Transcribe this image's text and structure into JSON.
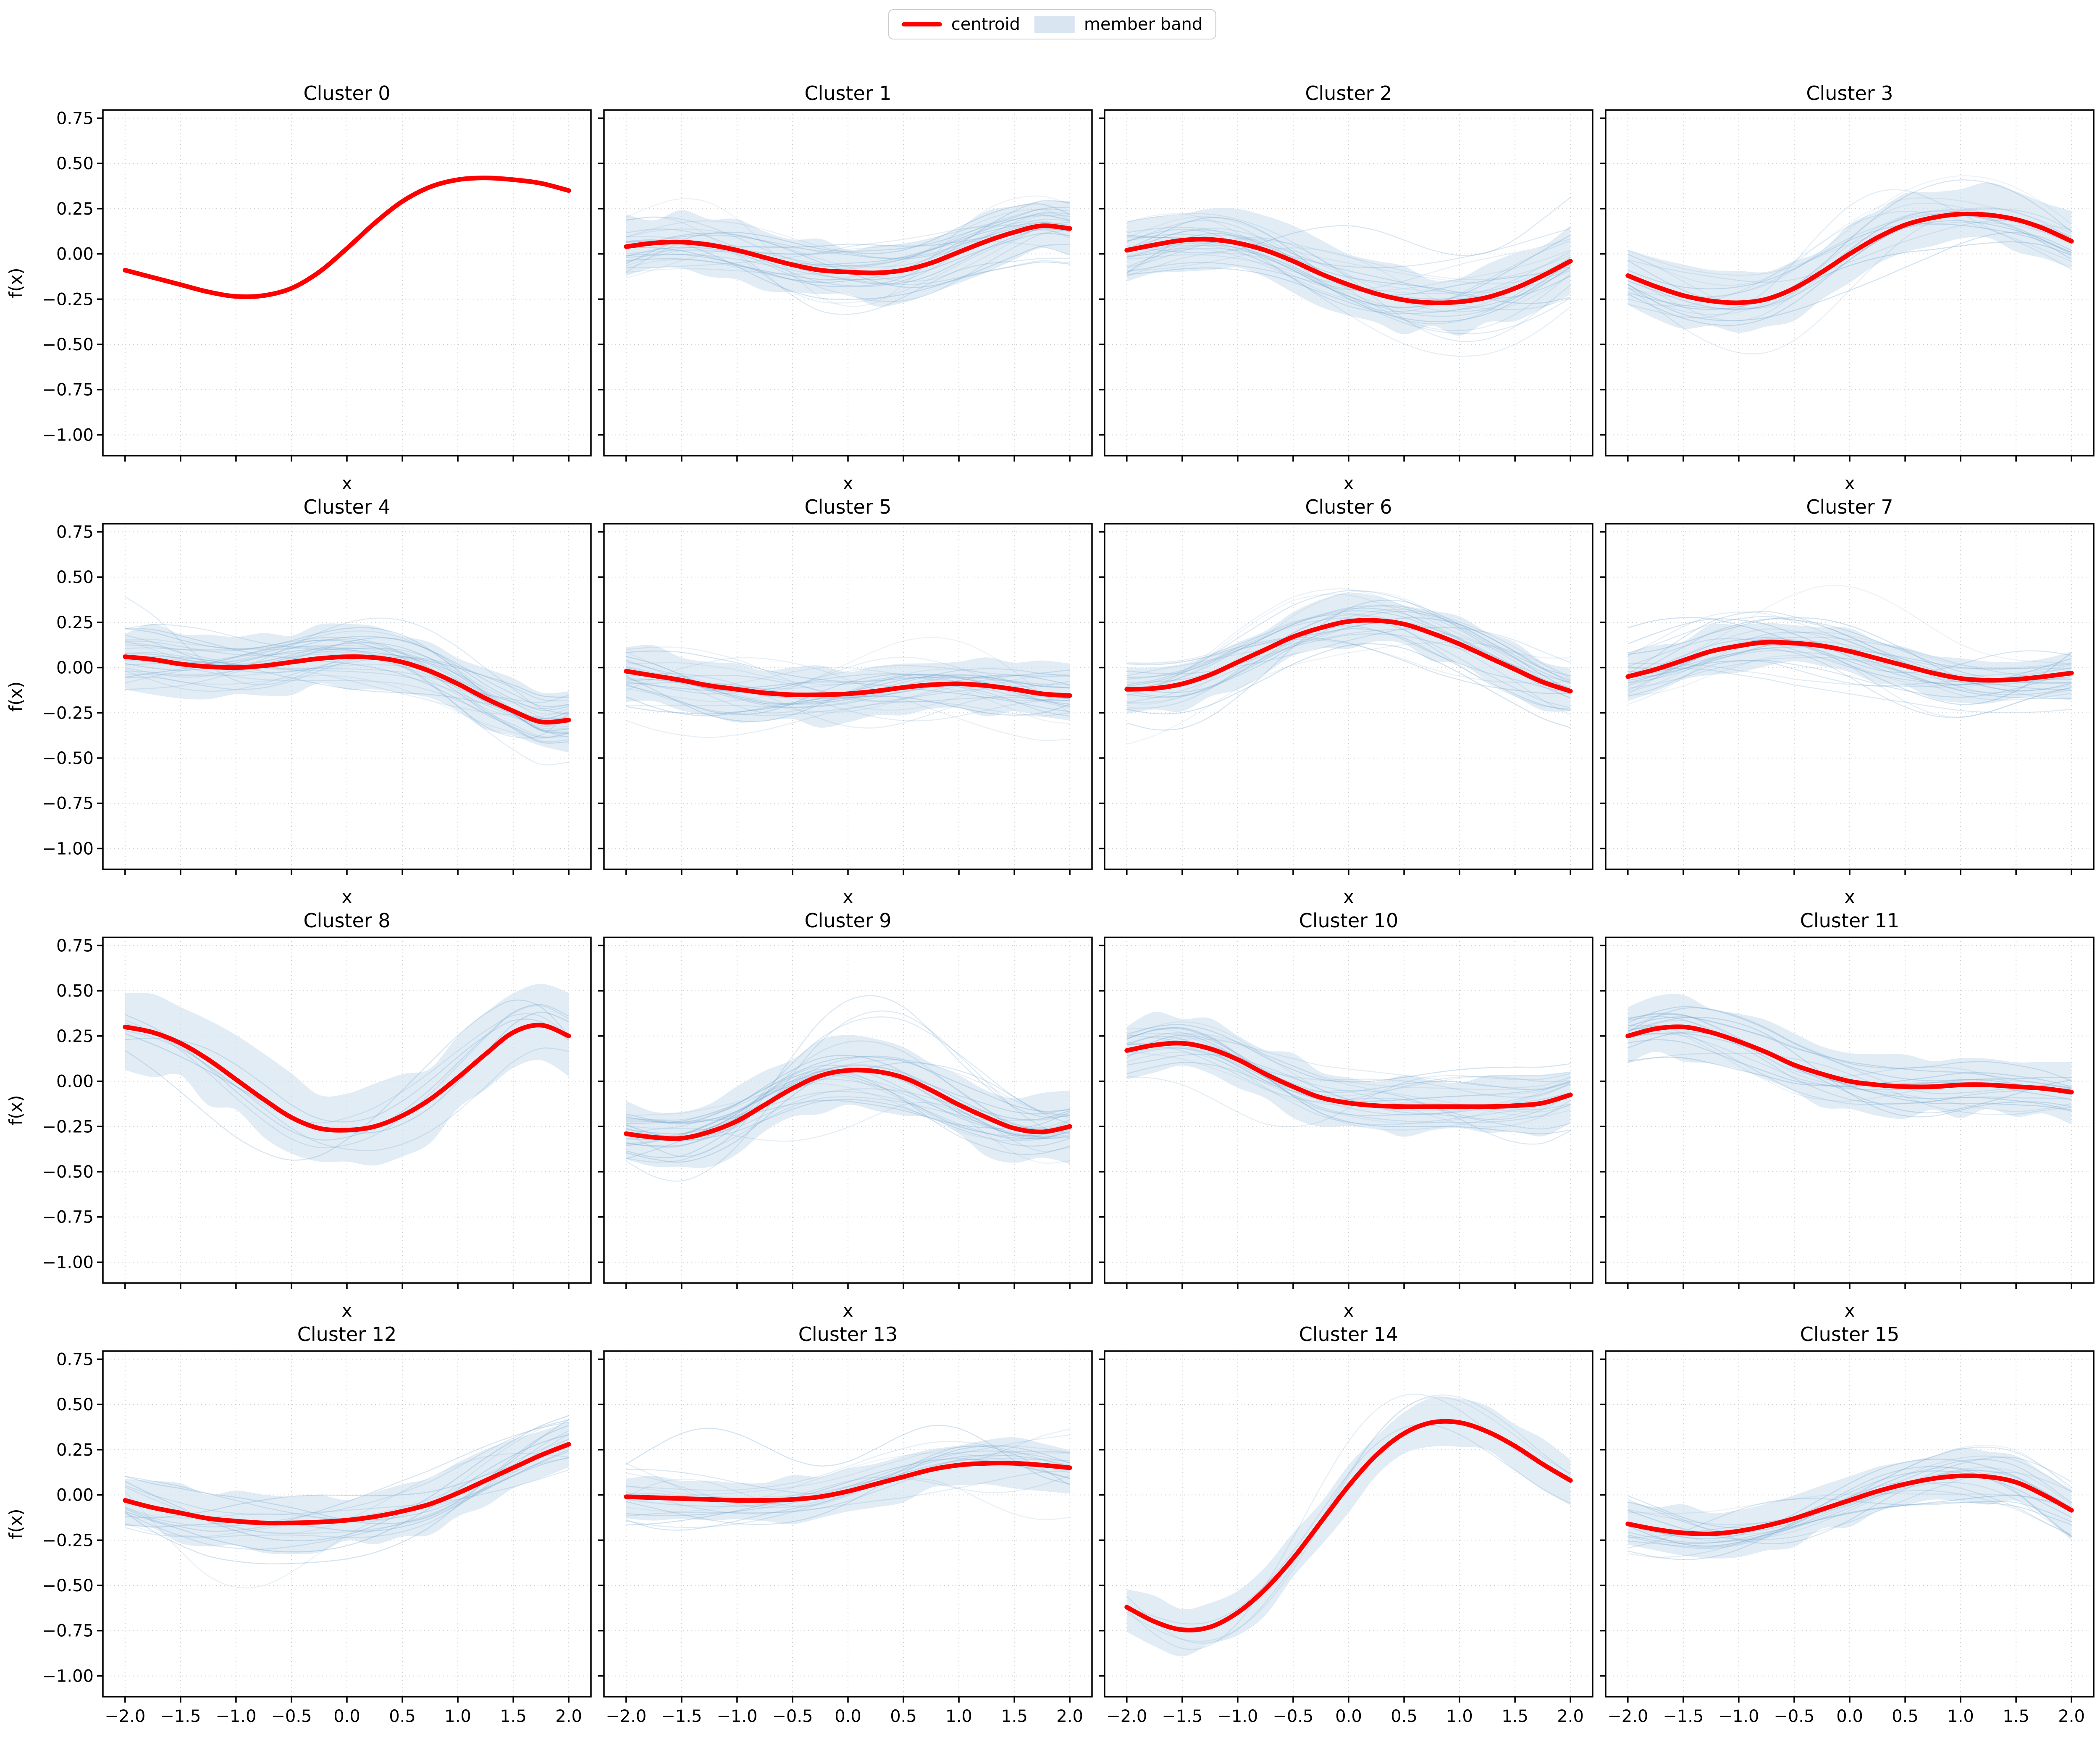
{
  "legend": {
    "items": [
      {
        "label": "centroid",
        "type": "line",
        "color": "#ff0000"
      },
      {
        "label": "member band",
        "type": "patch",
        "color": "#d9e6f2"
      }
    ]
  },
  "style": {
    "centroid_color": "#ff0000",
    "member_color": "#6fa3cc",
    "band_fill": "#cfe0ef",
    "grid_color": "#c9c9c9",
    "frame_color": "#000000"
  },
  "axes": {
    "xlabel": "x",
    "ylabel": "f(x)",
    "xlim": [
      -2.2,
      2.2
    ],
    "ylim": [
      -1.115,
      0.795
    ],
    "grid": "dotted",
    "xticks": [
      -2.0,
      -1.5,
      -1.0,
      -0.5,
      0.0,
      0.5,
      1.0,
      1.5,
      2.0
    ],
    "yticks": [
      0.75,
      0.5,
      0.25,
      0.0,
      -0.25,
      -0.5,
      -0.75,
      -1.0
    ],
    "xtick_labels": [
      "−2.0",
      "−1.5",
      "−1.0",
      "−0.5",
      "0.0",
      "0.5",
      "1.0",
      "1.5",
      "2.0"
    ],
    "ytick_labels": [
      "0.75",
      "0.50",
      "0.25",
      "0.00",
      "−0.25",
      "−0.50",
      "−0.75",
      "−1.00"
    ]
  },
  "chart_data": {
    "type": "line",
    "layout": "4x4 grid of subplots, shared axes style",
    "legend_position": "top center",
    "x": [
      -2.0,
      -1.75,
      -1.5,
      -1.25,
      -1.0,
      -0.75,
      -0.5,
      -0.25,
      0.0,
      0.25,
      0.5,
      0.75,
      1.0,
      1.25,
      1.5,
      1.75,
      2.0
    ],
    "panels": [
      {
        "title": "Cluster 0",
        "centroid": [
          -0.09,
          -0.13,
          -0.17,
          -0.21,
          -0.235,
          -0.23,
          -0.19,
          -0.1,
          0.03,
          0.17,
          0.29,
          0.37,
          0.41,
          0.42,
          0.41,
          0.39,
          0.35
        ],
        "band_halfwidth": 0,
        "n_members": 0
      },
      {
        "title": "Cluster 1",
        "centroid": [
          0.04,
          0.06,
          0.065,
          0.05,
          0.02,
          -0.02,
          -0.06,
          -0.09,
          -0.1,
          -0.105,
          -0.09,
          -0.05,
          0.01,
          0.07,
          0.12,
          0.155,
          0.14
        ],
        "band_halfwidth": 0.15,
        "n_members": 28
      },
      {
        "title": "Cluster 2",
        "centroid": [
          0.02,
          0.05,
          0.075,
          0.08,
          0.06,
          0.02,
          -0.04,
          -0.11,
          -0.17,
          -0.22,
          -0.255,
          -0.27,
          -0.265,
          -0.24,
          -0.19,
          -0.12,
          -0.04
        ],
        "band_halfwidth": 0.16,
        "n_members": 28
      },
      {
        "title": "Cluster 3",
        "centroid": [
          -0.12,
          -0.18,
          -0.23,
          -0.26,
          -0.27,
          -0.25,
          -0.19,
          -0.1,
          0.0,
          0.09,
          0.16,
          0.2,
          0.22,
          0.215,
          0.19,
          0.14,
          0.07
        ],
        "band_halfwidth": 0.15,
        "n_members": 18
      },
      {
        "title": "Cluster 4",
        "centroid": [
          0.06,
          0.045,
          0.02,
          0.005,
          0.0,
          0.01,
          0.03,
          0.05,
          0.06,
          0.055,
          0.03,
          -0.02,
          -0.09,
          -0.17,
          -0.24,
          -0.3,
          -0.29
        ],
        "band_halfwidth": 0.16,
        "n_members": 30
      },
      {
        "title": "Cluster 5",
        "centroid": [
          -0.02,
          -0.045,
          -0.07,
          -0.1,
          -0.12,
          -0.14,
          -0.15,
          -0.15,
          -0.145,
          -0.13,
          -0.11,
          -0.095,
          -0.09,
          -0.1,
          -0.12,
          -0.145,
          -0.155
        ],
        "band_halfwidth": 0.15,
        "n_members": 30
      },
      {
        "title": "Cluster 6",
        "centroid": [
          -0.12,
          -0.115,
          -0.09,
          -0.04,
          0.03,
          0.1,
          0.17,
          0.22,
          0.255,
          0.26,
          0.24,
          0.19,
          0.13,
          0.06,
          -0.01,
          -0.08,
          -0.13
        ],
        "band_halfwidth": 0.13,
        "n_members": 25
      },
      {
        "title": "Cluster 7",
        "centroid": [
          -0.05,
          -0.01,
          0.04,
          0.09,
          0.12,
          0.14,
          0.135,
          0.12,
          0.09,
          0.05,
          0.01,
          -0.03,
          -0.06,
          -0.07,
          -0.065,
          -0.05,
          -0.03
        ],
        "band_halfwidth": 0.12,
        "n_members": 28
      },
      {
        "title": "Cluster 8",
        "centroid": [
          0.3,
          0.27,
          0.21,
          0.12,
          0.01,
          -0.1,
          -0.2,
          -0.26,
          -0.27,
          -0.25,
          -0.19,
          -0.1,
          0.02,
          0.15,
          0.27,
          0.31,
          0.25
        ],
        "band_halfwidth": 0.21,
        "n_members": 7
      },
      {
        "title": "Cluster 9",
        "centroid": [
          -0.29,
          -0.31,
          -0.315,
          -0.28,
          -0.22,
          -0.13,
          -0.04,
          0.03,
          0.06,
          0.055,
          0.02,
          -0.05,
          -0.13,
          -0.2,
          -0.26,
          -0.28,
          -0.25
        ],
        "band_halfwidth": 0.18,
        "n_members": 28
      },
      {
        "title": "Cluster 10",
        "centroid": [
          0.17,
          0.2,
          0.21,
          0.18,
          0.12,
          0.04,
          -0.03,
          -0.09,
          -0.12,
          -0.135,
          -0.14,
          -0.14,
          -0.14,
          -0.14,
          -0.135,
          -0.12,
          -0.075
        ],
        "band_halfwidth": 0.15,
        "n_members": 25
      },
      {
        "title": "Cluster 11",
        "centroid": [
          0.25,
          0.29,
          0.3,
          0.27,
          0.22,
          0.16,
          0.09,
          0.04,
          0.0,
          -0.02,
          -0.03,
          -0.03,
          -0.02,
          -0.02,
          -0.03,
          -0.04,
          -0.06
        ],
        "band_halfwidth": 0.16,
        "n_members": 18
      },
      {
        "title": "Cluster 12",
        "centroid": [
          -0.03,
          -0.07,
          -0.1,
          -0.13,
          -0.145,
          -0.155,
          -0.155,
          -0.15,
          -0.14,
          -0.12,
          -0.09,
          -0.05,
          0.01,
          0.08,
          0.15,
          0.22,
          0.28
        ],
        "band_halfwidth": 0.14,
        "n_members": 18
      },
      {
        "title": "Cluster 13",
        "centroid": [
          -0.01,
          -0.015,
          -0.02,
          -0.025,
          -0.03,
          -0.03,
          -0.025,
          -0.01,
          0.02,
          0.06,
          0.1,
          0.14,
          0.165,
          0.175,
          0.175,
          0.165,
          0.15
        ],
        "band_halfwidth": 0.12,
        "n_members": 18
      },
      {
        "title": "Cluster 14",
        "centroid": [
          -0.62,
          -0.7,
          -0.745,
          -0.73,
          -0.65,
          -0.52,
          -0.35,
          -0.15,
          0.05,
          0.22,
          0.34,
          0.4,
          0.4,
          0.35,
          0.27,
          0.17,
          0.08
        ],
        "band_halfwidth": 0.12,
        "n_members": 4
      },
      {
        "title": "Cluster 15",
        "centroid": [
          -0.16,
          -0.19,
          -0.21,
          -0.215,
          -0.2,
          -0.17,
          -0.13,
          -0.08,
          -0.03,
          0.02,
          0.06,
          0.09,
          0.105,
          0.1,
          0.07,
          0.0,
          -0.085
        ],
        "band_halfwidth": 0.13,
        "n_members": 20
      }
    ]
  }
}
